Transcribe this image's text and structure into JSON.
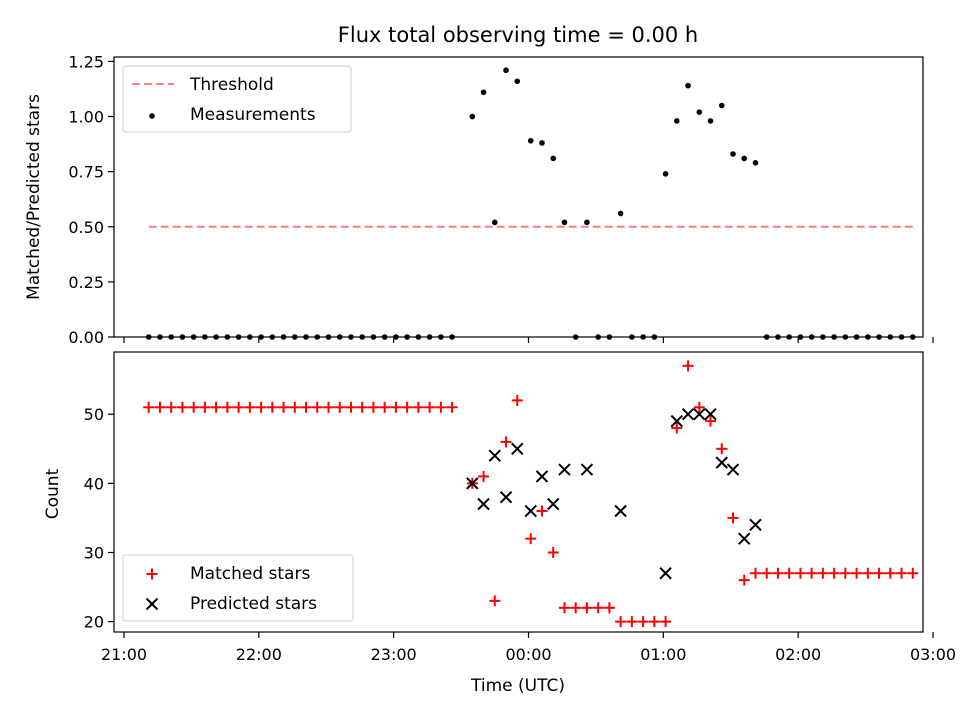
{
  "chart_data": [
    {
      "type": "scatter",
      "title": "Flux total observing time = 0.00 h",
      "xlabel": "",
      "ylabel": "Matched/Predicted stars",
      "ylim": [
        0,
        1.27
      ],
      "yticks": [
        "0.00",
        "0.25",
        "0.50",
        "0.75",
        "1.00",
        "1.25"
      ],
      "xlim": [
        "21:00",
        "03:00"
      ],
      "grid": false,
      "legend_position": "top-left",
      "threshold": {
        "name": "Threshold",
        "value": 0.5,
        "color": "#ff7f7f",
        "x_start": "21:11",
        "x_end": "02:52"
      },
      "series": [
        {
          "name": "Measurements",
          "color": "#000000",
          "points": [
            [
              "21:11",
              0
            ],
            [
              "21:16",
              0
            ],
            [
              "21:21",
              0
            ],
            [
              "21:26",
              0
            ],
            [
              "21:31",
              0
            ],
            [
              "21:36",
              0
            ],
            [
              "21:41",
              0
            ],
            [
              "21:46",
              0
            ],
            [
              "21:51",
              0
            ],
            [
              "21:56",
              0
            ],
            [
              "22:01",
              0
            ],
            [
              "22:06",
              0
            ],
            [
              "22:11",
              0
            ],
            [
              "22:16",
              0
            ],
            [
              "22:21",
              0
            ],
            [
              "22:26",
              0
            ],
            [
              "22:31",
              0
            ],
            [
              "22:36",
              0
            ],
            [
              "22:41",
              0
            ],
            [
              "22:46",
              0
            ],
            [
              "22:51",
              0
            ],
            [
              "22:56",
              0
            ],
            [
              "23:01",
              0
            ],
            [
              "23:06",
              0
            ],
            [
              "23:11",
              0
            ],
            [
              "23:16",
              0
            ],
            [
              "23:21",
              0
            ],
            [
              "23:26",
              0
            ],
            [
              "23:35",
              1.0
            ],
            [
              "23:40",
              1.11
            ],
            [
              "23:45",
              0.52
            ],
            [
              "23:50",
              1.21
            ],
            [
              "23:55",
              1.16
            ],
            [
              "00:01",
              0.89
            ],
            [
              "00:06",
              0.88
            ],
            [
              "00:11",
              0.81
            ],
            [
              "00:16",
              0.52
            ],
            [
              "00:21",
              0
            ],
            [
              "00:26",
              0.52
            ],
            [
              "00:31",
              0
            ],
            [
              "00:36",
              0
            ],
            [
              "00:41",
              0.56
            ],
            [
              "00:46",
              0
            ],
            [
              "00:51",
              0
            ],
            [
              "00:56",
              0
            ],
            [
              "01:01",
              0.74
            ],
            [
              "01:06",
              0.98
            ],
            [
              "01:11",
              1.14
            ],
            [
              "01:16",
              1.02
            ],
            [
              "01:21",
              0.98
            ],
            [
              "01:26",
              1.05
            ],
            [
              "01:31",
              0.83
            ],
            [
              "01:36",
              0.81
            ],
            [
              "01:41",
              0.79
            ],
            [
              "01:46",
              0
            ],
            [
              "01:51",
              0
            ],
            [
              "01:56",
              0
            ],
            [
              "02:01",
              0
            ],
            [
              "02:06",
              0
            ],
            [
              "02:11",
              0
            ],
            [
              "02:16",
              0
            ],
            [
              "02:21",
              0
            ],
            [
              "02:26",
              0
            ],
            [
              "02:31",
              0
            ],
            [
              "02:36",
              0
            ],
            [
              "02:41",
              0
            ],
            [
              "02:46",
              0
            ],
            [
              "02:51",
              0
            ]
          ]
        }
      ]
    },
    {
      "type": "scatter",
      "title": "",
      "xlabel": "Time (UTC)",
      "ylabel": "Count",
      "ylim": [
        18.5,
        59
      ],
      "yticks": [
        "20",
        "30",
        "40",
        "50"
      ],
      "xticks": [
        "21:00",
        "22:00",
        "23:00",
        "00:00",
        "01:00",
        "02:00",
        "03:00"
      ],
      "xlim": [
        "21:00",
        "03:00"
      ],
      "grid": false,
      "legend_position": "bottom-left",
      "series": [
        {
          "name": "Matched stars",
          "marker": "plus",
          "color": "#ff0000",
          "points": [
            [
              "21:11",
              51
            ],
            [
              "21:16",
              51
            ],
            [
              "21:21",
              51
            ],
            [
              "21:26",
              51
            ],
            [
              "21:31",
              51
            ],
            [
              "21:36",
              51
            ],
            [
              "21:41",
              51
            ],
            [
              "21:46",
              51
            ],
            [
              "21:51",
              51
            ],
            [
              "21:56",
              51
            ],
            [
              "22:01",
              51
            ],
            [
              "22:06",
              51
            ],
            [
              "22:11",
              51
            ],
            [
              "22:16",
              51
            ],
            [
              "22:21",
              51
            ],
            [
              "22:26",
              51
            ],
            [
              "22:31",
              51
            ],
            [
              "22:36",
              51
            ],
            [
              "22:41",
              51
            ],
            [
              "22:46",
              51
            ],
            [
              "22:51",
              51
            ],
            [
              "22:56",
              51
            ],
            [
              "23:01",
              51
            ],
            [
              "23:06",
              51
            ],
            [
              "23:11",
              51
            ],
            [
              "23:16",
              51
            ],
            [
              "23:21",
              51
            ],
            [
              "23:26",
              51
            ],
            [
              "23:35",
              40
            ],
            [
              "23:40",
              41
            ],
            [
              "23:45",
              23
            ],
            [
              "23:50",
              46
            ],
            [
              "23:55",
              52
            ],
            [
              "00:01",
              32
            ],
            [
              "00:06",
              36
            ],
            [
              "00:11",
              30
            ],
            [
              "00:16",
              22
            ],
            [
              "00:21",
              22
            ],
            [
              "00:26",
              22
            ],
            [
              "00:31",
              22
            ],
            [
              "00:36",
              22
            ],
            [
              "00:41",
              20
            ],
            [
              "00:46",
              20
            ],
            [
              "00:51",
              20
            ],
            [
              "00:56",
              20
            ],
            [
              "01:01",
              20
            ],
            [
              "01:06",
              48
            ],
            [
              "01:11",
              57
            ],
            [
              "01:16",
              51
            ],
            [
              "01:21",
              49
            ],
            [
              "01:26",
              45
            ],
            [
              "01:31",
              35
            ],
            [
              "01:36",
              26
            ],
            [
              "01:41",
              27
            ],
            [
              "01:46",
              27
            ],
            [
              "01:51",
              27
            ],
            [
              "01:56",
              27
            ],
            [
              "02:01",
              27
            ],
            [
              "02:06",
              27
            ],
            [
              "02:11",
              27
            ],
            [
              "02:16",
              27
            ],
            [
              "02:21",
              27
            ],
            [
              "02:26",
              27
            ],
            [
              "02:31",
              27
            ],
            [
              "02:36",
              27
            ],
            [
              "02:41",
              27
            ],
            [
              "02:46",
              27
            ],
            [
              "02:51",
              27
            ]
          ]
        },
        {
          "name": "Predicted stars",
          "marker": "x",
          "color": "#000000",
          "points": [
            [
              "23:35",
              40
            ],
            [
              "23:40",
              37
            ],
            [
              "23:45",
              44
            ],
            [
              "23:50",
              38
            ],
            [
              "23:55",
              45
            ],
            [
              "00:01",
              36
            ],
            [
              "00:06",
              41
            ],
            [
              "00:11",
              37
            ],
            [
              "00:16",
              42
            ],
            [
              "00:26",
              42
            ],
            [
              "00:41",
              36
            ],
            [
              "01:01",
              27
            ],
            [
              "01:06",
              49
            ],
            [
              "01:11",
              50
            ],
            [
              "01:16",
              50
            ],
            [
              "01:21",
              50
            ],
            [
              "01:26",
              43
            ],
            [
              "01:31",
              42
            ],
            [
              "01:36",
              32
            ],
            [
              "01:41",
              34
            ]
          ]
        }
      ]
    }
  ]
}
